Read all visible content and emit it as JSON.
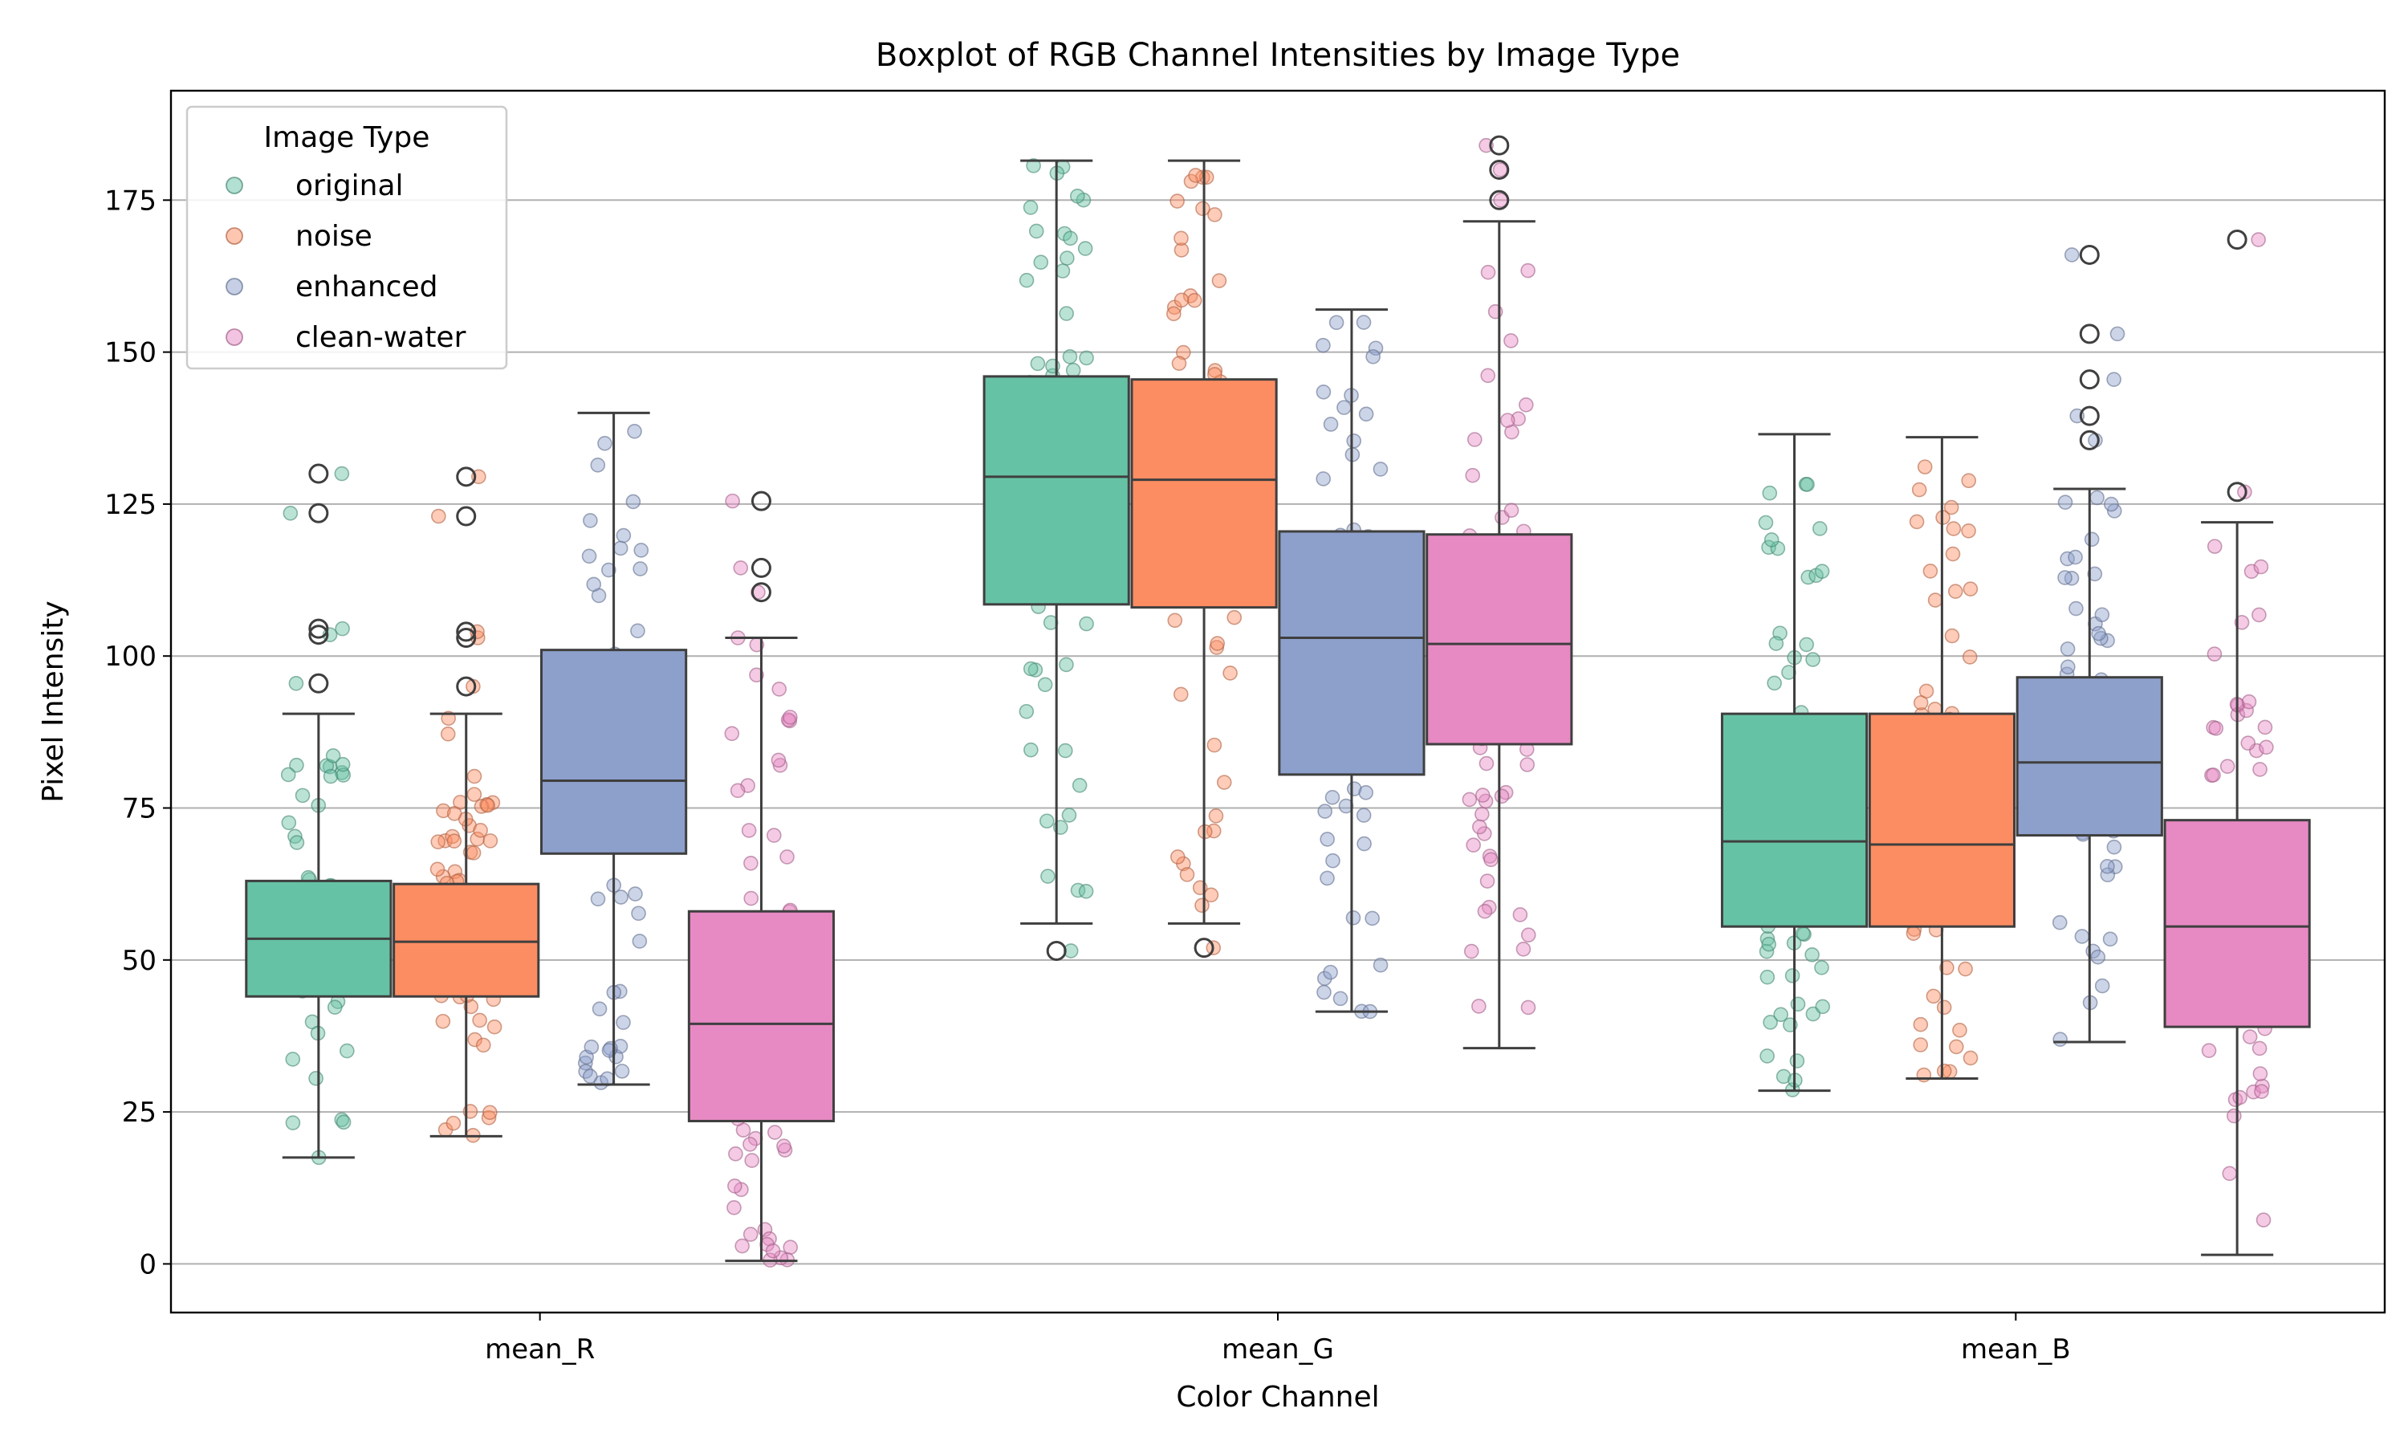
{
  "chart_data": {
    "type": "boxplot",
    "title": "Boxplot of RGB Channel Intensities by Image Type",
    "xlabel": "Color Channel",
    "ylabel": "Pixel Intensity",
    "ylim": [
      -8,
      193
    ],
    "yticks": [
      0,
      25,
      50,
      75,
      100,
      125,
      150,
      175
    ],
    "grid": "horizontal",
    "categories": [
      "mean_R",
      "mean_G",
      "mean_B"
    ],
    "legend": {
      "title": "Image Type",
      "position": "top-left"
    },
    "series": [
      {
        "name": "original",
        "color": "#66c2a5",
        "boxes": [
          {
            "whislo": 17.5,
            "q1": 44,
            "med": 53.5,
            "q3": 63,
            "whishi": 90.5,
            "fliers": [
              95.5,
              103.5,
              104.5,
              123.5,
              130
            ]
          },
          {
            "whislo": 56,
            "q1": 108.5,
            "med": 129.5,
            "q3": 146,
            "whishi": 181.5,
            "fliers": [
              51.5
            ]
          },
          {
            "whislo": 28.5,
            "q1": 55.5,
            "med": 69.5,
            "q3": 90.5,
            "whishi": 136.5,
            "fliers": []
          }
        ]
      },
      {
        "name": "noise",
        "color": "#fc8d62",
        "boxes": [
          {
            "whislo": 21,
            "q1": 44,
            "med": 53,
            "q3": 62.5,
            "whishi": 90.5,
            "fliers": [
              95,
              103,
              104,
              123,
              129.5
            ]
          },
          {
            "whislo": 56,
            "q1": 108,
            "med": 129,
            "q3": 145.5,
            "whishi": 181.5,
            "fliers": [
              52
            ]
          },
          {
            "whislo": 30.5,
            "q1": 55.5,
            "med": 69,
            "q3": 90.5,
            "whishi": 136,
            "fliers": []
          }
        ]
      },
      {
        "name": "enhanced",
        "color": "#8da0cb",
        "boxes": [
          {
            "whislo": 29.5,
            "q1": 67.5,
            "med": 79.5,
            "q3": 101,
            "whishi": 140,
            "fliers": []
          },
          {
            "whislo": 41.5,
            "q1": 80.5,
            "med": 103,
            "q3": 120.5,
            "whishi": 157,
            "fliers": []
          },
          {
            "whislo": 36.5,
            "q1": 70.5,
            "med": 82.5,
            "q3": 96.5,
            "whishi": 127.5,
            "fliers": [
              135.5,
              139.5,
              145.5,
              153,
              166
            ]
          }
        ]
      },
      {
        "name": "clean-water",
        "color": "#e78ac3",
        "boxes": [
          {
            "whislo": 0.5,
            "q1": 23.5,
            "med": 39.5,
            "q3": 58,
            "whishi": 103,
            "fliers": [
              110.5,
              114.5,
              125.5
            ]
          },
          {
            "whislo": 35.5,
            "q1": 85.5,
            "med": 102,
            "q3": 120,
            "whishi": 171.5,
            "fliers": [
              175,
              180,
              184
            ]
          },
          {
            "whislo": 1.5,
            "q1": 39,
            "med": 55.5,
            "q3": 73,
            "whishi": 122,
            "fliers": [
              127,
              168.5
            ]
          }
        ]
      }
    ]
  }
}
